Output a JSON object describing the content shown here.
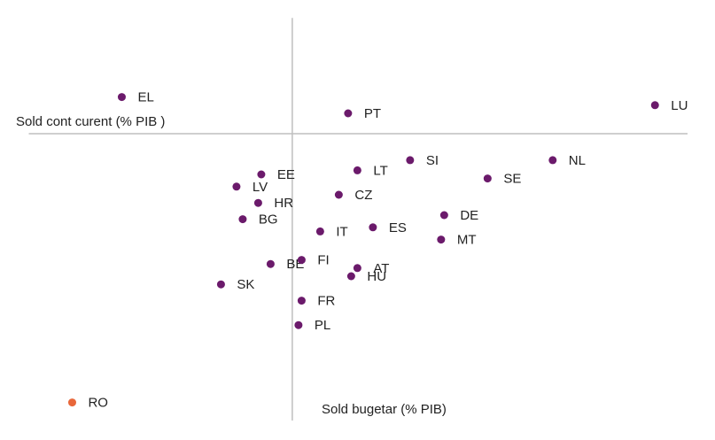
{
  "chart_data": {
    "type": "scatter",
    "x_label": "Sold cont curent (% PIB )",
    "y_label": "Sold bugetar (% PIB)",
    "labels": [
      "EL",
      "PT",
      "LU",
      "SI",
      "NL",
      "LT",
      "SE",
      "EE",
      "LV",
      "CZ",
      "HR",
      "DE",
      "BG",
      "ES",
      "IT",
      "MT",
      "BE",
      "FI",
      "AT",
      "HU",
      "SK",
      "FR",
      "PL",
      "RO"
    ],
    "x": [
      -5.5,
      1.8,
      11.7,
      3.8,
      8.4,
      2.1,
      6.3,
      -1.0,
      -1.8,
      1.5,
      -1.1,
      4.9,
      -1.6,
      2.6,
      0.9,
      4.8,
      -0.7,
      0.3,
      2.1,
      1.9,
      -2.3,
      0.3,
      0.2,
      -7.1
    ],
    "values": [
      0.9,
      0.5,
      0.7,
      -0.65,
      -0.65,
      -0.9,
      -1.1,
      -1.0,
      -1.3,
      -1.5,
      -1.7,
      -2.0,
      -2.1,
      -2.3,
      -2.4,
      -2.6,
      -3.2,
      -3.1,
      -3.3,
      -3.5,
      -3.7,
      -4.1,
      -4.7,
      -6.6
    ],
    "colors": [
      "#6b1a6b",
      "#6b1a6b",
      "#6b1a6b",
      "#6b1a6b",
      "#6b1a6b",
      "#6b1a6b",
      "#6b1a6b",
      "#6b1a6b",
      "#6b1a6b",
      "#6b1a6b",
      "#6b1a6b",
      "#6b1a6b",
      "#6b1a6b",
      "#6b1a6b",
      "#6b1a6b",
      "#6b1a6b",
      "#6b1a6b",
      "#6b1a6b",
      "#6b1a6b",
      "#6b1a6b",
      "#6b1a6b",
      "#6b1a6b",
      "#6b1a6b",
      "#e8673a"
    ],
    "xlim": [
      -8.5,
      12.75
    ],
    "ylim": [
      -7,
      2.8
    ]
  }
}
